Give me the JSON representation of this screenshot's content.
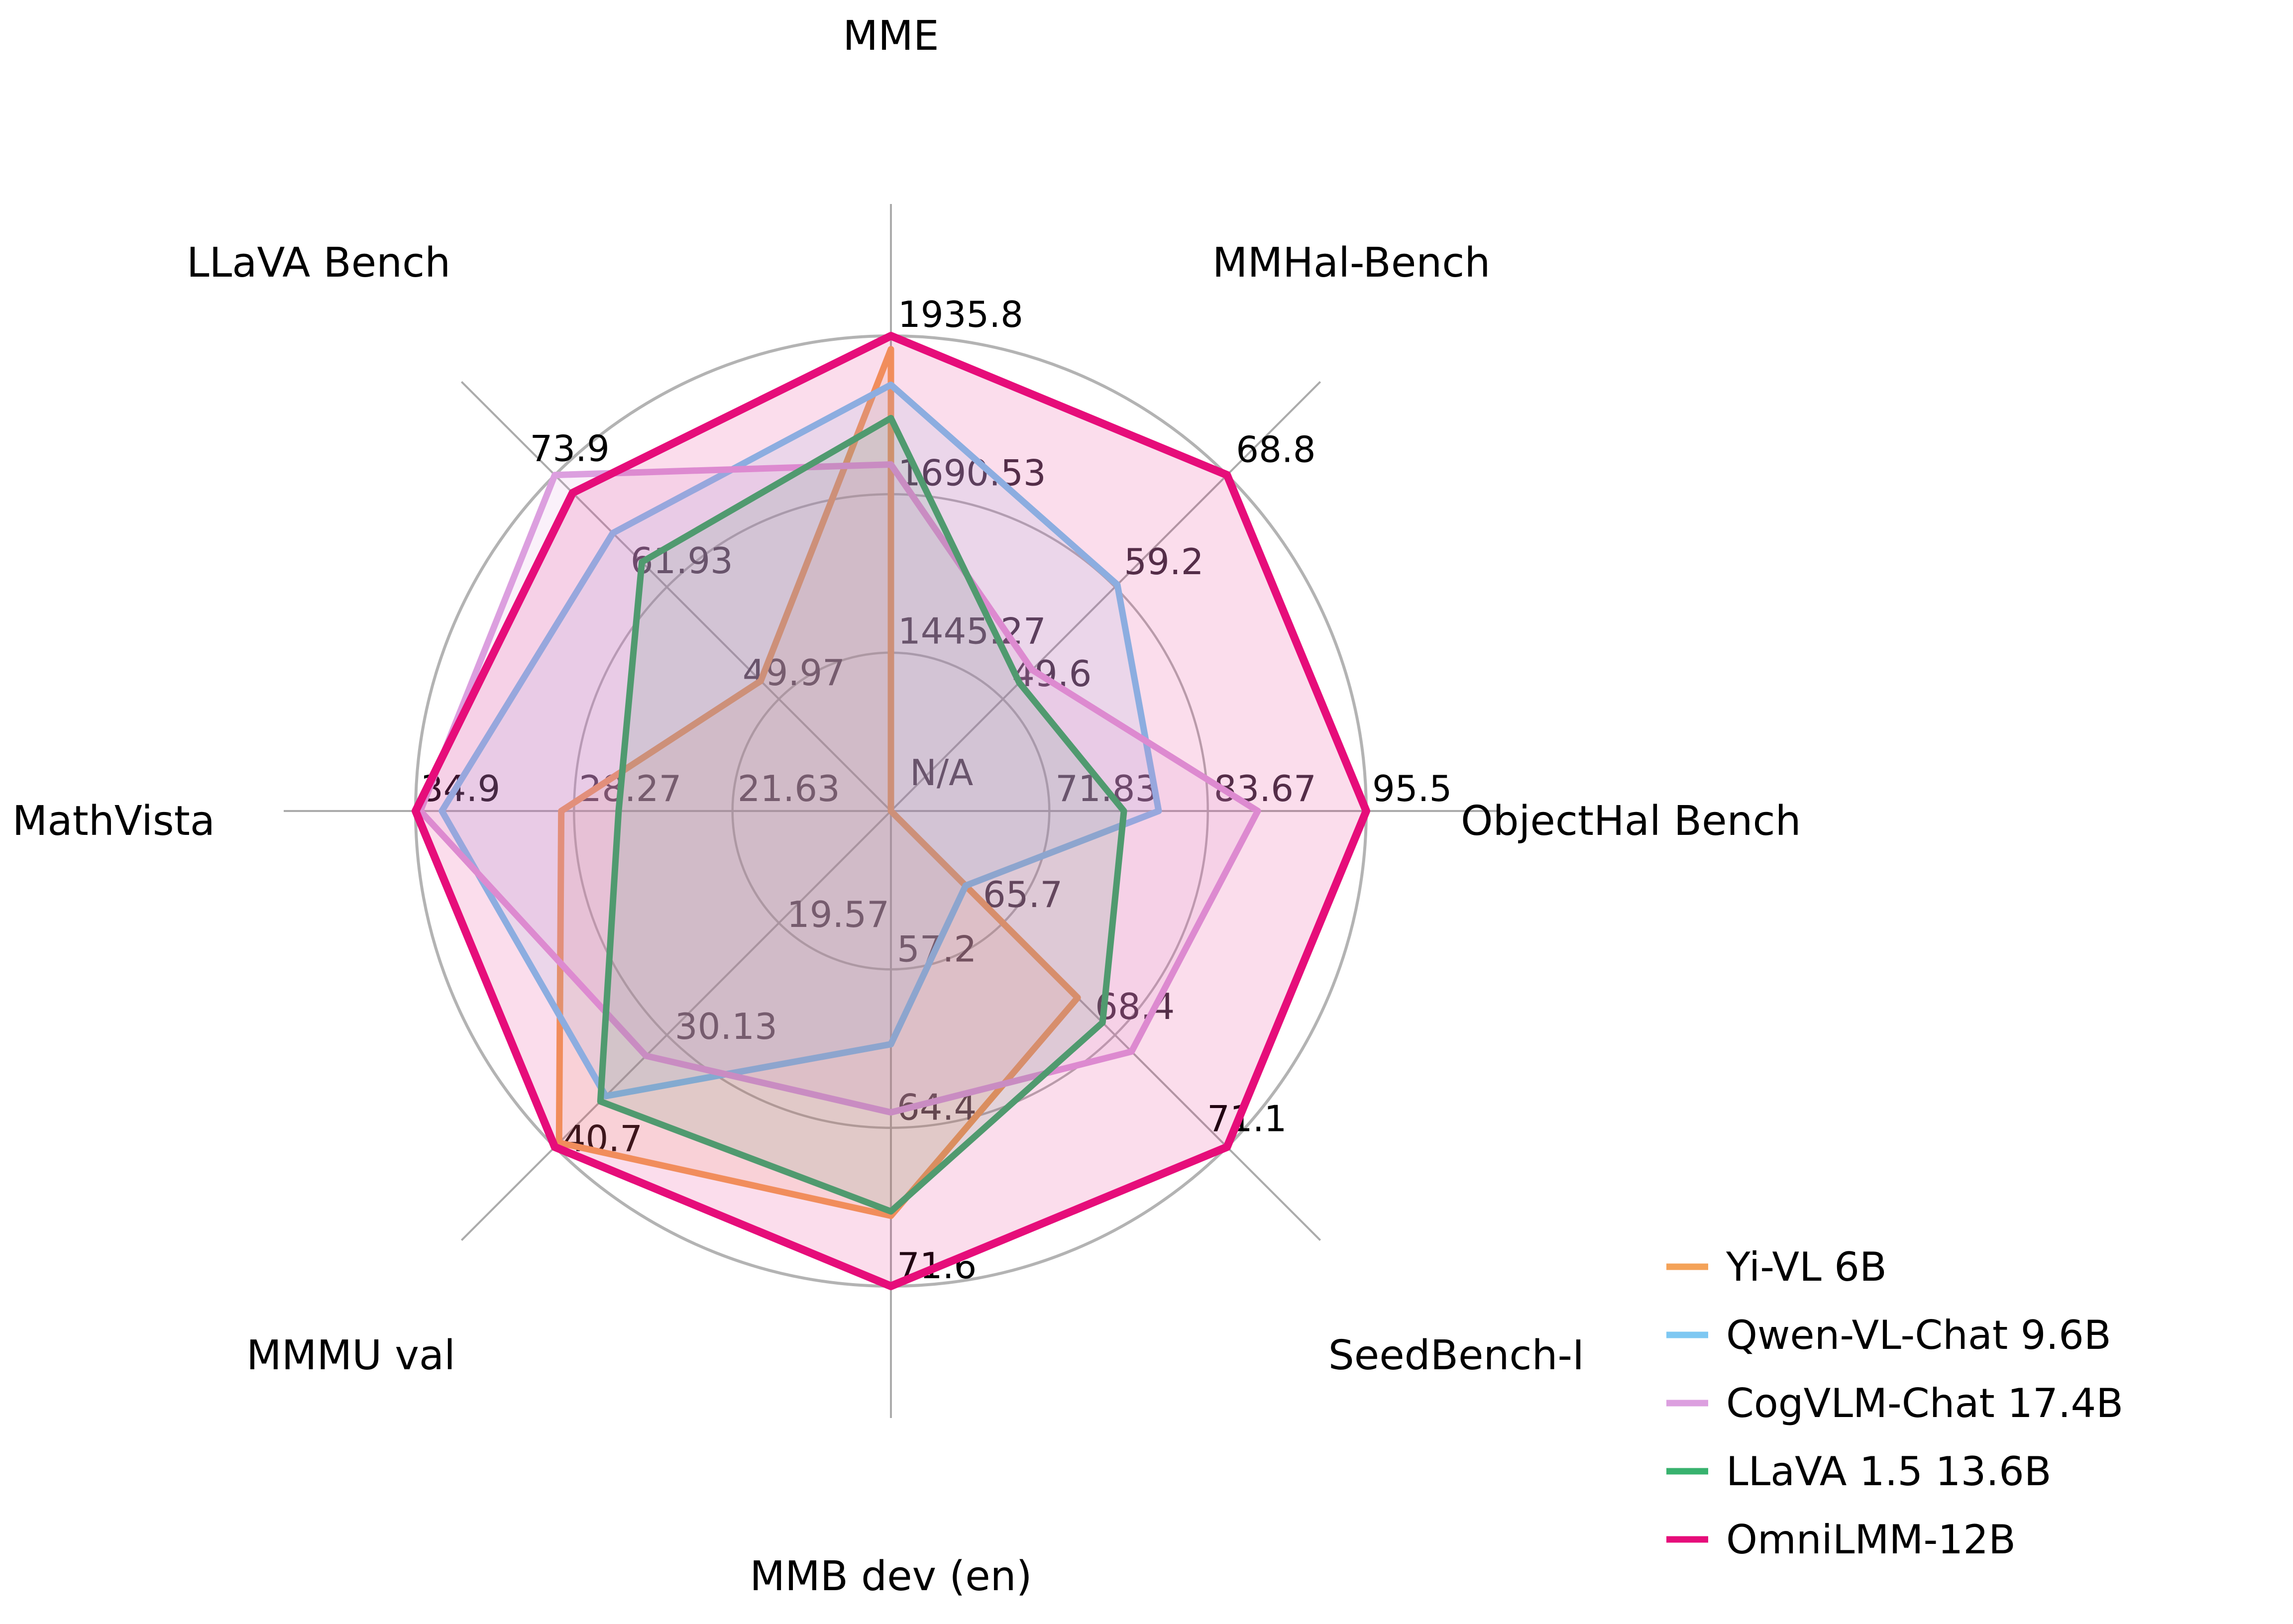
{
  "chart_data": {
    "type": "radar",
    "title": "",
    "center_label": "N/A",
    "grid": true,
    "ring_fractions": [
      0.3333,
      0.6667,
      1.0
    ],
    "grid_color": "#b3b3b3",
    "spoke_color": "#ababab",
    "inner_tick_color": "#3d3340",
    "outer_tick_color": "#000000",
    "axes": [
      {
        "label": "MME",
        "min": 1200,
        "max": 1935.8,
        "ticks": [
          "1445.27",
          "1690.53",
          "1935.8"
        ]
      },
      {
        "label": "MMHal-Bench",
        "min": 40,
        "max": 68.8,
        "ticks": [
          "49.6",
          "59.2",
          "68.8"
        ]
      },
      {
        "label": "ObjectHal Bench",
        "min": 60,
        "max": 95.5,
        "ticks": [
          "71.83",
          "83.67",
          "95.5"
        ]
      },
      {
        "label": "SeedBench-I",
        "min": 63,
        "max": 71.1,
        "ticks": [
          "65.7",
          "68.4",
          "71.1"
        ]
      },
      {
        "label": "MMB dev (en)",
        "min": 50,
        "max": 71.6,
        "ticks": [
          "57.2",
          "64.4",
          "71.6"
        ]
      },
      {
        "label": "MMMU val",
        "min": 9,
        "max": 40.7,
        "ticks": [
          "19.57",
          "30.13",
          "40.7"
        ]
      },
      {
        "label": "MathVista",
        "min": 15,
        "max": 34.9,
        "ticks": [
          "21.63",
          "28.27",
          "34.9"
        ]
      },
      {
        "label": "LLaVA Bench",
        "min": 38,
        "max": 73.9,
        "ticks": [
          "49.97",
          "61.93",
          "73.9"
        ]
      }
    ],
    "series": [
      {
        "name": "Yi-VL 6B",
        "color": "#f4a258",
        "values": [
          1915.1,
          null,
          null,
          67.5,
          68.4,
          40.3,
          28.8,
          51.9
        ]
      },
      {
        "name": "Qwen-VL-Chat 9.6B",
        "color": "#7ec8f2",
        "values": [
          1860.0,
          59.4,
          80.0,
          64.8,
          60.6,
          35.9,
          33.8,
          67.7
        ]
      },
      {
        "name": "CogVLM-Chat 17.4B",
        "color": "#dc9fdf",
        "values": [
          1736.6,
          52.1,
          87.4,
          68.8,
          63.7,
          32.1,
          34.7,
          73.9
        ]
      },
      {
        "name": "LLaVA 1.5 13.6B",
        "color": "#38b26e",
        "values": [
          1808.4,
          51.0,
          77.4,
          68.1,
          68.2,
          36.4,
          26.4,
          64.6
        ]
      },
      {
        "name": "OmniLMM-12B",
        "color": "#e60d7a",
        "values": [
          1935.8,
          68.8,
          95.5,
          71.1,
          71.6,
          40.7,
          34.9,
          72.0
        ]
      }
    ],
    "legend_position": "lower right"
  }
}
